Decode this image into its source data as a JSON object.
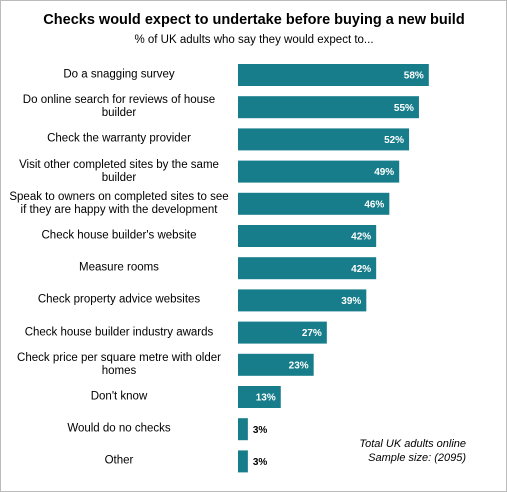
{
  "chart_data": {
    "type": "bar",
    "orientation": "horizontal",
    "title": "Checks would expect to undertake before buying a new build",
    "subtitle": "% of UK adults who say they would expect to...",
    "categories": [
      "Do a snagging survey",
      "Do online search for reviews of house builder",
      "Check the warranty provider",
      "Visit other completed sites by the same builder",
      "Speak to owners on completed sites to see if they are happy with the development",
      "Check house builder's website",
      "Measure rooms",
      "Check property advice websites",
      "Check house builder industry awards",
      "Check price per square metre with older homes",
      "Don't know",
      "Would do no checks",
      "Other"
    ],
    "values": [
      58,
      55,
      52,
      49,
      46,
      42,
      42,
      39,
      27,
      23,
      13,
      3,
      3
    ],
    "value_labels": [
      "58%",
      "55%",
      "52%",
      "49%",
      "46%",
      "42%",
      "42%",
      "39%",
      "27%",
      "23%",
      "13%",
      "3%",
      "3%"
    ],
    "color": "#177d8a",
    "notes": [
      "Total UK adults online",
      "Sample size:  (2095)"
    ]
  }
}
